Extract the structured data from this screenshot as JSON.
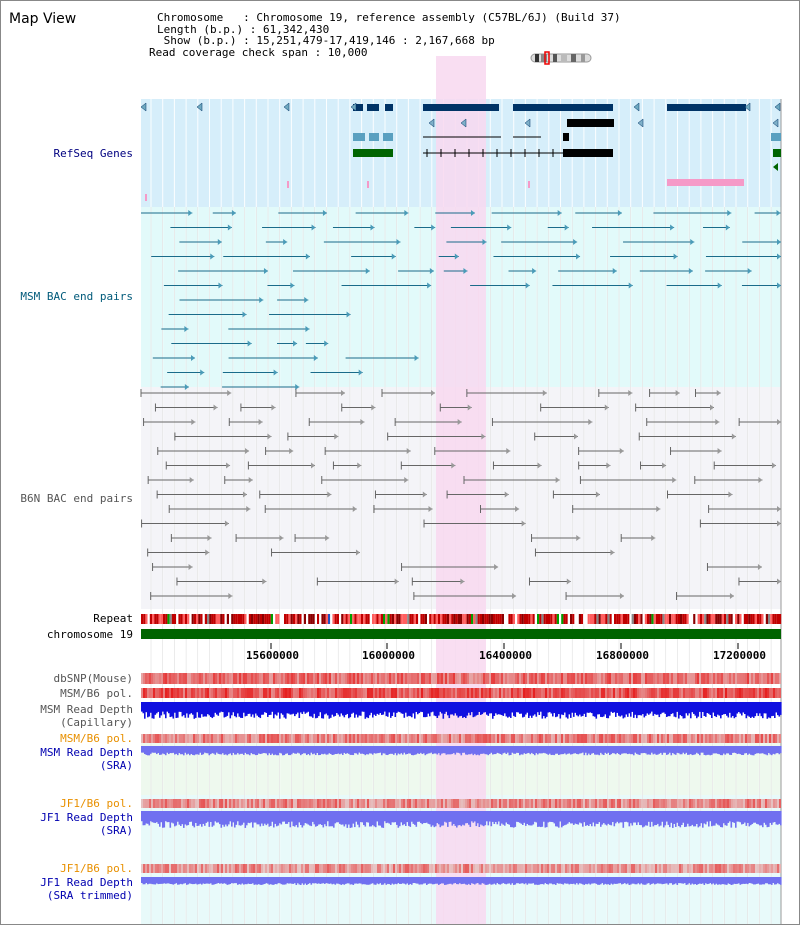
{
  "app": {
    "title": "Map View"
  },
  "info": {
    "chromosome_line": "Chromosome   : Chromosome 19, reference assembly (C57BL/6J) (Build 37)",
    "length_line": "Length (b.p.) : 61,342,430",
    "show_line": " Show (b.p.) : 15,251,479-17,419,146 : 2,167,668 bp",
    "coverage_line": "Read coverage check span : 10,000"
  },
  "tracks": {
    "refseq": "RefSeq Genes",
    "msm_bac": "MSM BAC end pairs",
    "b6n_bac": "B6N BAC end pairs",
    "repeat": "Repeat",
    "chromosome": "chromosome 19",
    "dbsnp": "dbSNP(Mouse)",
    "msm_b6_pol": "MSM/B6 pol.",
    "msm_depth_cap": "MSM Read Depth\n(Capillary)",
    "msm_b6_pol2": "MSM/B6 pol.",
    "msm_depth_sra": "MSM Read Depth\n(SRA)",
    "jf1_b6_pol": "JF1/B6 pol.",
    "jf1_depth_sra": "JF1 Read Depth\n(SRA)",
    "jf1_b6_pol2": "JF1/B6 pol.",
    "jf1_depth_trim": "JF1 Read Depth\n(SRA trimmed)"
  },
  "axis": {
    "ticks": [
      "15600000",
      "16000000",
      "16400000",
      "16800000",
      "17200000"
    ],
    "range": [
      15251479,
      17419146
    ]
  },
  "colors": {
    "refseq_bg": "#d6eefa",
    "msm_bg": "#e2fafa",
    "b6n_bg": "#f4f4f8",
    "highlight": "#f8d8f0",
    "refseq_gene": "#003366",
    "msm_pair": "#1a6b8a",
    "b6n_pair": "#666666",
    "chromosome": "#006400",
    "depth_blue": "#1010e0",
    "depth_violet": "#7070f0"
  }
}
